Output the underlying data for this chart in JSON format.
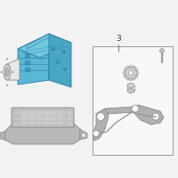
{
  "bg_color": "#f2f2f2",
  "dsc_top": "#6ec8e0",
  "dsc_front": "#5ab8d4",
  "dsc_right": "#48a8c4",
  "dsc_dark": "#2878a0",
  "motor_body": "#e8e8e8",
  "motor_face": "#d0d0d0",
  "ecu_color": "#c8c8c8",
  "ecu_grid": "#a8a8a8",
  "bracket_color": "#b8b8b8",
  "part_color": "#b0b0b0",
  "box_bg": "#f8f8f8",
  "line_color": "#555555",
  "fig_bg": "#f2f2f2"
}
